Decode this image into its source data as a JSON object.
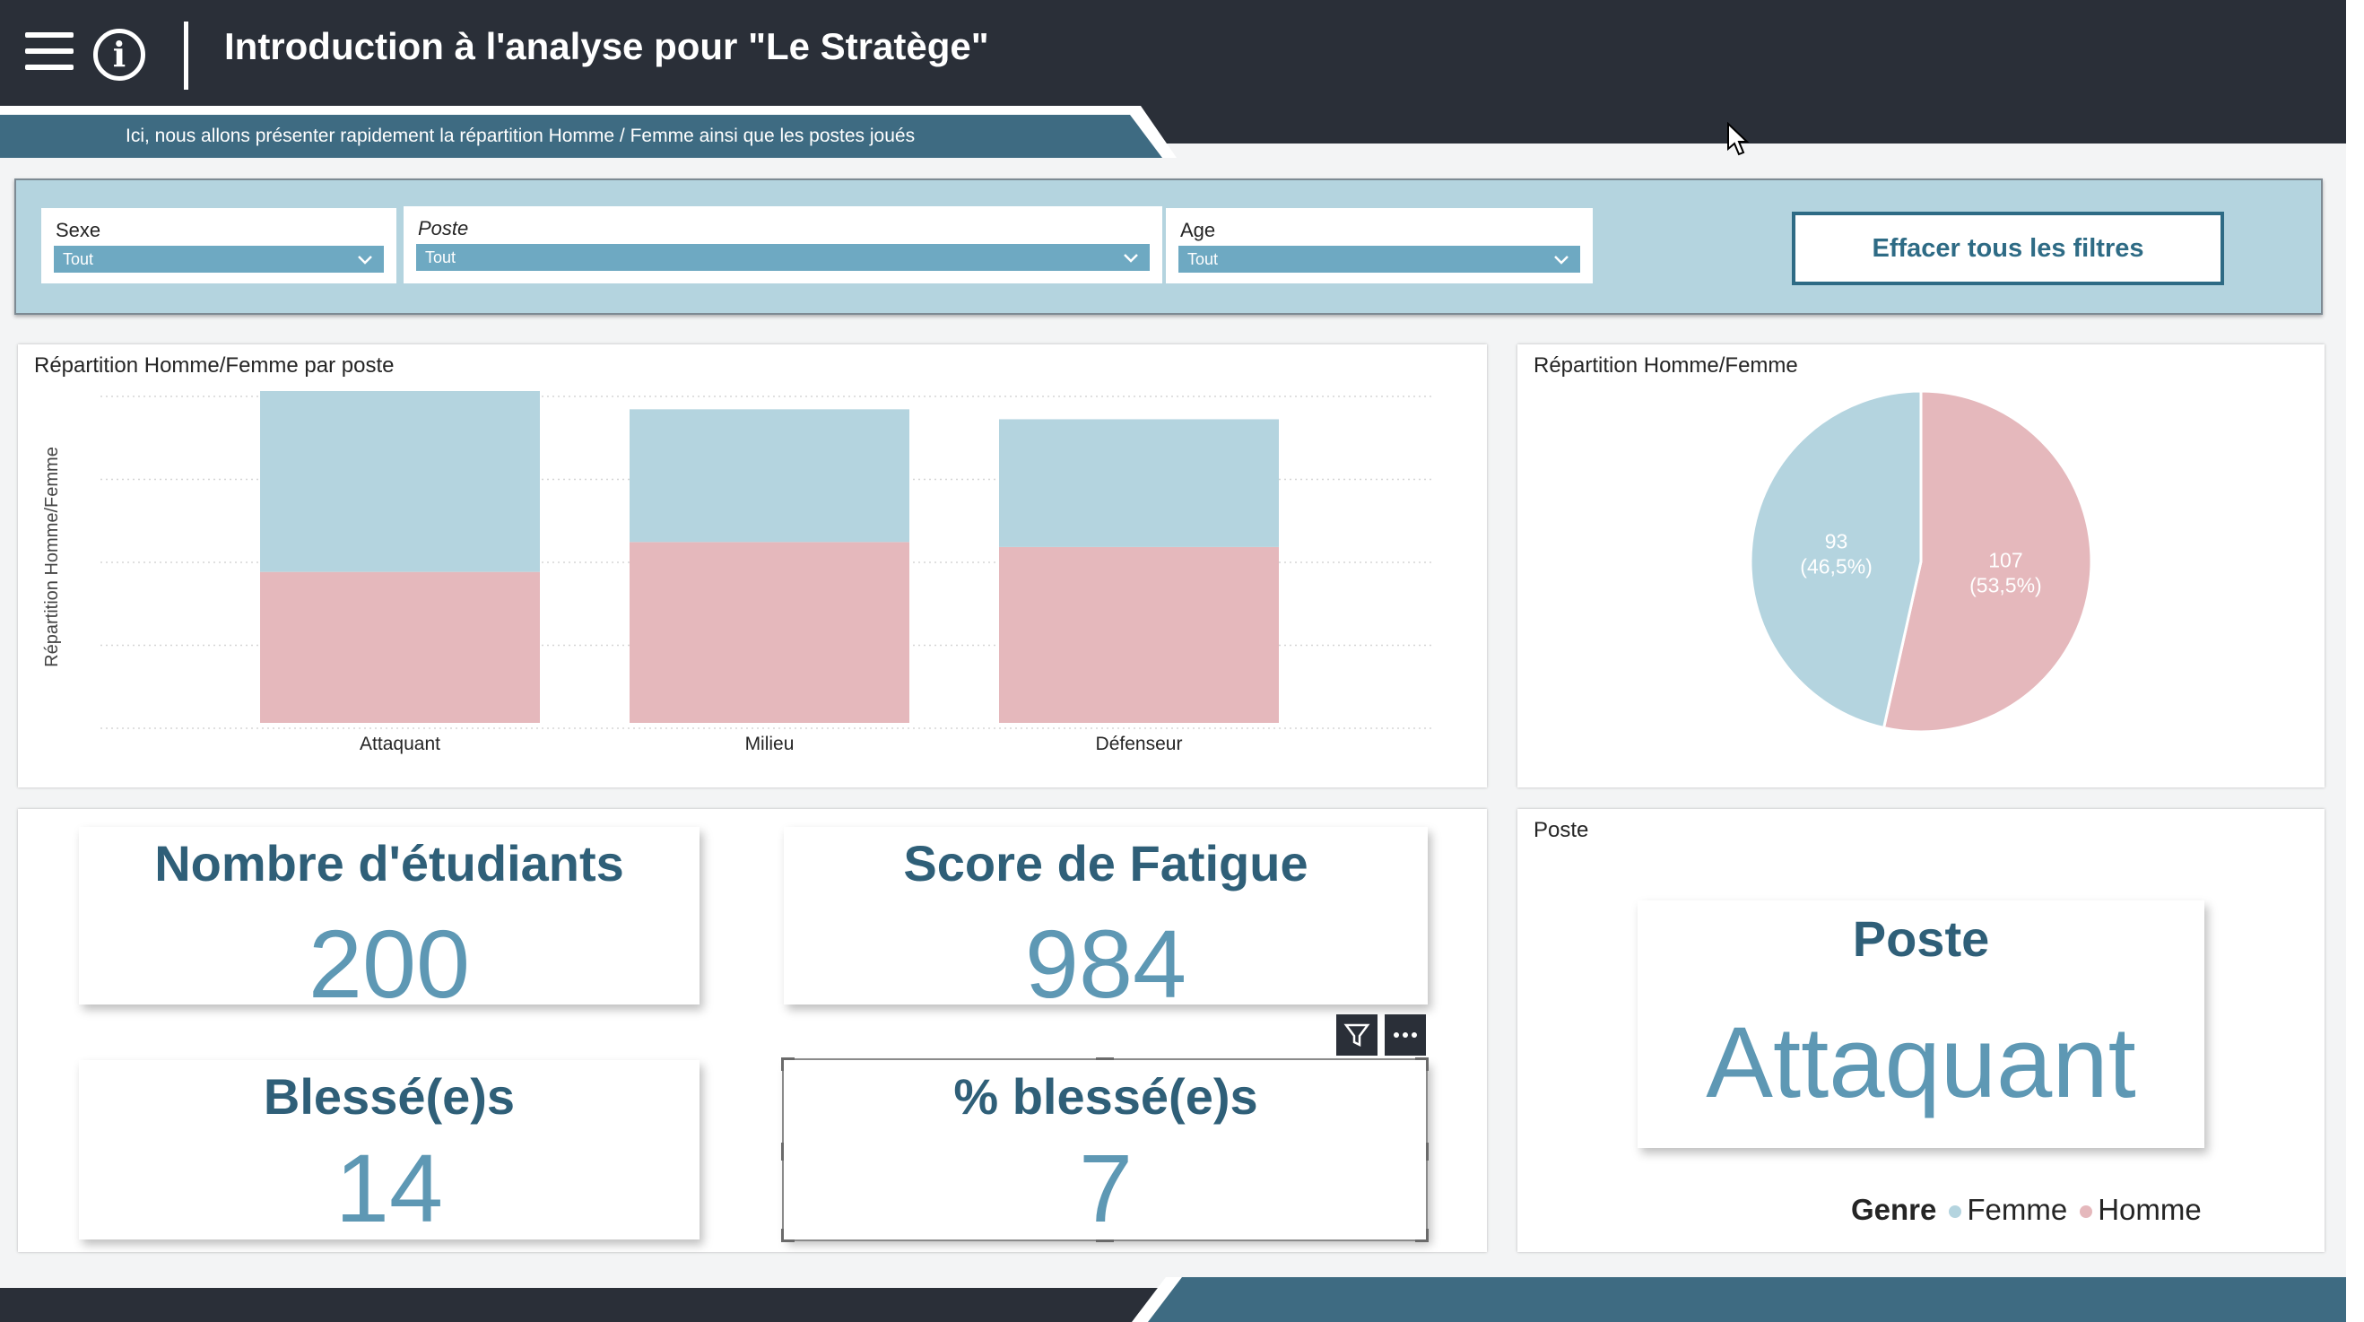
{
  "header": {
    "title": "Introduction à l'analyse pour \"Le Stratège\"",
    "subtitle": "Ici, nous allons présenter rapidement la répartition Homme / Femme ainsi que les postes joués"
  },
  "filters": {
    "sexe": {
      "label": "Sexe",
      "value": "Tout"
    },
    "poste": {
      "label": "Poste",
      "value": "Tout"
    },
    "age": {
      "label": "Age",
      "value": "Tout"
    },
    "clear_button": "Effacer tous les filtres"
  },
  "colors": {
    "femme": "#b4d4df",
    "homme": "#e5b8bc",
    "accent": "#2e6b85",
    "kpi_value": "#5e98b4",
    "dark": "#2a2f38"
  },
  "chart_data": [
    {
      "type": "bar",
      "stacked": true,
      "title": "Répartition Homme/Femme par poste",
      "ylabel": "Répartition Homme/Femme",
      "categories": [
        "Attaquant",
        "Milieu",
        "Défenseur"
      ],
      "series": [
        {
          "name": "Homme",
          "values": [
            0.455,
            0.545,
            0.53
          ]
        },
        {
          "name": "Femme",
          "values": [
            0.545,
            0.4,
            0.385
          ]
        }
      ],
      "ylim": [
        0,
        1
      ],
      "grid": true
    },
    {
      "type": "pie",
      "title": "Répartition Homme/Femme",
      "slices": [
        {
          "name": "Homme",
          "value": 107,
          "label_value": "107",
          "label_pct": "(53,5%)"
        },
        {
          "name": "Femme",
          "value": 93,
          "label_value": "93",
          "label_pct": "(46,5%)"
        }
      ]
    }
  ],
  "kpis": {
    "etudiants": {
      "label": "Nombre d'étudiants",
      "value": "200"
    },
    "fatigue": {
      "label": "Score de Fatigue",
      "value": "984"
    },
    "blesses": {
      "label": "Blessé(e)s",
      "value": "14"
    },
    "pct_blesses": {
      "label": "% blessé(e)s",
      "value": "7"
    }
  },
  "poste_card": {
    "title": "Poste",
    "kpi_label": "Poste",
    "kpi_value": "Attaquant"
  },
  "legend": {
    "title": "Genre",
    "items": [
      "Femme",
      "Homme"
    ]
  },
  "icons": [
    "menu-icon",
    "info-icon",
    "chevron-down-icon",
    "filter-icon",
    "more-options-icon",
    "mouse-cursor-icon"
  ]
}
